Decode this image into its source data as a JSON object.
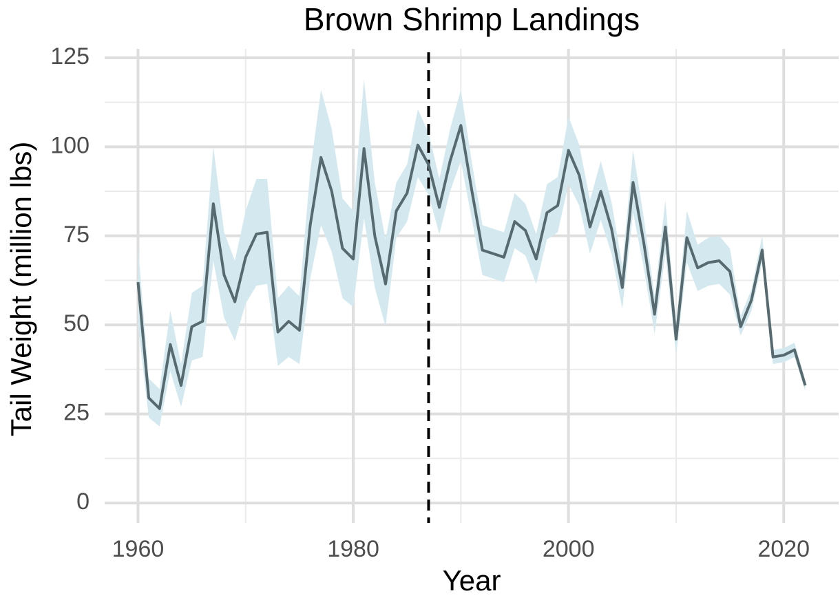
{
  "chart_data": {
    "type": "line",
    "title": "Brown Shrimp Landings",
    "x_label": "Year",
    "y_label": "Tail Weight (million lbs)",
    "x": [
      1960,
      1961,
      1962,
      1963,
      1964,
      1965,
      1966,
      1967,
      1968,
      1969,
      1970,
      1971,
      1972,
      1973,
      1974,
      1975,
      1976,
      1977,
      1978,
      1979,
      1980,
      1981,
      1982,
      1983,
      1984,
      1985,
      1986,
      1987,
      1988,
      1989,
      1990,
      1991,
      1992,
      1993,
      1994,
      1995,
      1996,
      1997,
      1998,
      1999,
      2000,
      2001,
      2002,
      2003,
      2004,
      2005,
      2006,
      2007,
      2008,
      2009,
      2010,
      2011,
      2012,
      2013,
      2014,
      2015,
      2016,
      2017,
      2018,
      2019,
      2020,
      2021,
      2022
    ],
    "values": [
      62,
      29.5,
      26.5,
      44.5,
      33,
      49.5,
      51,
      84,
      64,
      56.5,
      69,
      75.5,
      76,
      48,
      51,
      48.5,
      78,
      97,
      87.5,
      71.5,
      68.5,
      99.5,
      75,
      61.5,
      82,
      87,
      100.5,
      95,
      83,
      96,
      106,
      88,
      71,
      70,
      69,
      79,
      76.5,
      68.5,
      81.5,
      83.5,
      99,
      92,
      77.5,
      87.5,
      77,
      60.5,
      90,
      73,
      53,
      77.5,
      46,
      74.5,
      66,
      67.5,
      68,
      65,
      49.5,
      57,
      71,
      41,
      41.5,
      43,
      33
    ],
    "lower": [
      50,
      24,
      21.5,
      37,
      27,
      40,
      41,
      68,
      52,
      45.5,
      56,
      61,
      61.5,
      38.5,
      41,
      39,
      63,
      78,
      70.5,
      57.5,
      55,
      80,
      60.5,
      49.5,
      74.5,
      79,
      91.5,
      86.5,
      75.5,
      87.5,
      96,
      80,
      64,
      63,
      62,
      71.5,
      69.5,
      61.5,
      74,
      76,
      89.5,
      83.5,
      70,
      79.5,
      70,
      54.5,
      81.5,
      66,
      47.5,
      70,
      41.5,
      67.5,
      59.5,
      61,
      61.5,
      58.5,
      47,
      54,
      67.5,
      39,
      39.5,
      41,
      31.5
    ],
    "upper": [
      72,
      35,
      32,
      54,
      39,
      59,
      61,
      100,
      76,
      68,
      82,
      91,
      91,
      57.5,
      61,
      58,
      93,
      116,
      105,
      85.5,
      82,
      119,
      90,
      74,
      90,
      95,
      110.5,
      104,
      91,
      105,
      116,
      96,
      78,
      77,
      76,
      87,
      84,
      75.5,
      89.5,
      91.5,
      108.5,
      100.5,
      85,
      96,
      84.5,
      66.5,
      99,
      80,
      58,
      85,
      50.5,
      82,
      72.5,
      74.5,
      75,
      71.5,
      52.5,
      60,
      75,
      43,
      43.5,
      45,
      34.5
    ],
    "color": "#566a70",
    "band_color": "#d4e8ef",
    "vline": 1987,
    "vline_color": "#000000",
    "xlim": [
      1956.9,
      2025.1
    ],
    "xticks": [
      1960,
      1980,
      2000,
      2020
    ],
    "xminor": [
      1970,
      1990,
      2010
    ],
    "ylim": [
      -5.6,
      127.5
    ],
    "yticks": [
      0,
      25,
      50,
      75,
      100,
      125
    ],
    "yminor": [
      12.5,
      37.5,
      62.5,
      87.5,
      112.5
    ],
    "grid": true
  }
}
